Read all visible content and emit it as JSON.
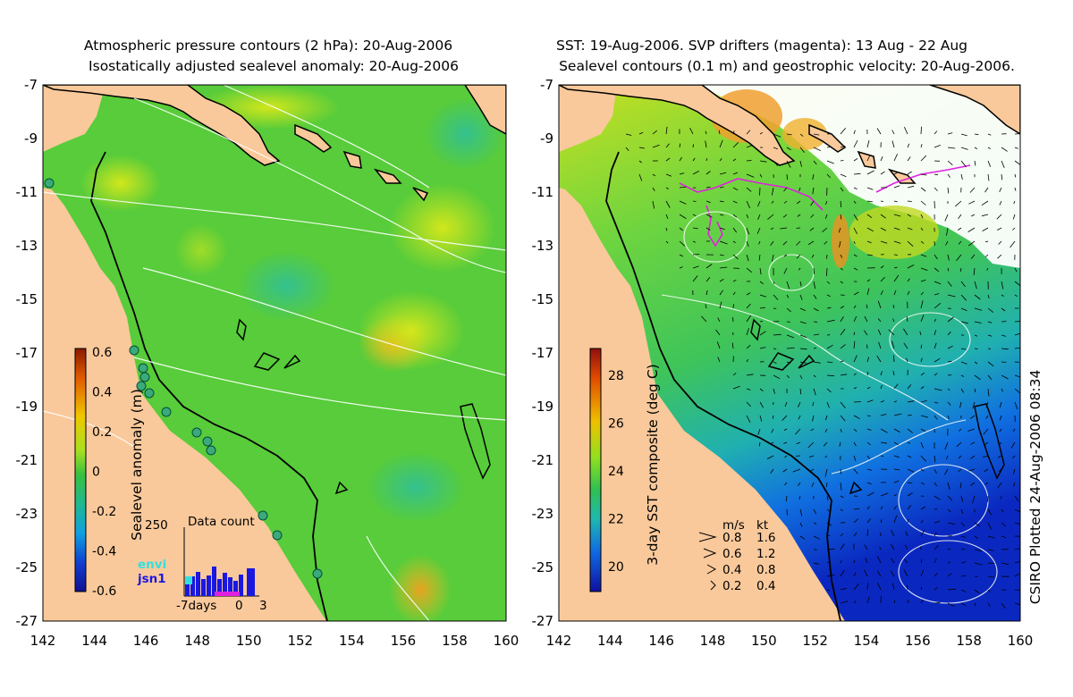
{
  "left_panel": {
    "title_line1": "Atmospheric pressure contours (2 hPa): 20-Aug-2006",
    "title_line2": "Isostatically adjusted sealevel anomaly: 20-Aug-2006",
    "colorbar_label": "Sealevel anomaly (m)",
    "colorbar_ticks": [
      "0.6",
      "0.4",
      "0.2",
      "0",
      "-0.2",
      "-0.4",
      "-0.6"
    ],
    "data_count": {
      "title": "Data count",
      "max_label": "250",
      "legend": [
        "envi",
        "jsn1"
      ],
      "x_labels": [
        "-7days",
        "0",
        "3"
      ]
    }
  },
  "right_panel": {
    "title_line1": "SST: 19-Aug-2006. SVP drifters (magenta): 13 Aug - 22 Aug",
    "title_line2": "Sealevel contours (0.1 m) and geostrophic velocity: 20-Aug-2006.",
    "colorbar_label": "3-day SST composite (deg C)",
    "colorbar_ticks": [
      "28",
      "26",
      "24",
      "22",
      "20"
    ],
    "velocity_key": {
      "headers": [
        "m/s",
        "kt"
      ],
      "rows": [
        [
          "0.8",
          "1.6"
        ],
        [
          "0.6",
          "1.2"
        ],
        [
          "0.4",
          "0.8"
        ],
        [
          "0.2",
          "0.4"
        ]
      ]
    },
    "credit": "CSIRO Plotted 24-Aug-2006 08:34"
  },
  "axes": {
    "y_ticks": [
      "-7",
      "-9",
      "-11",
      "-13",
      "-15",
      "-17",
      "-19",
      "-21",
      "-23",
      "-25",
      "-27"
    ],
    "x_ticks": [
      "142",
      "144",
      "146",
      "148",
      "150",
      "152",
      "154",
      "156",
      "158",
      "160"
    ]
  },
  "colors": {
    "land": "#f9c99b",
    "sea_green": "#4fcf3c",
    "sea_cold": "#0a30c8",
    "drifter": "#e020e0",
    "tide_gauge": "#3aaa7a"
  }
}
